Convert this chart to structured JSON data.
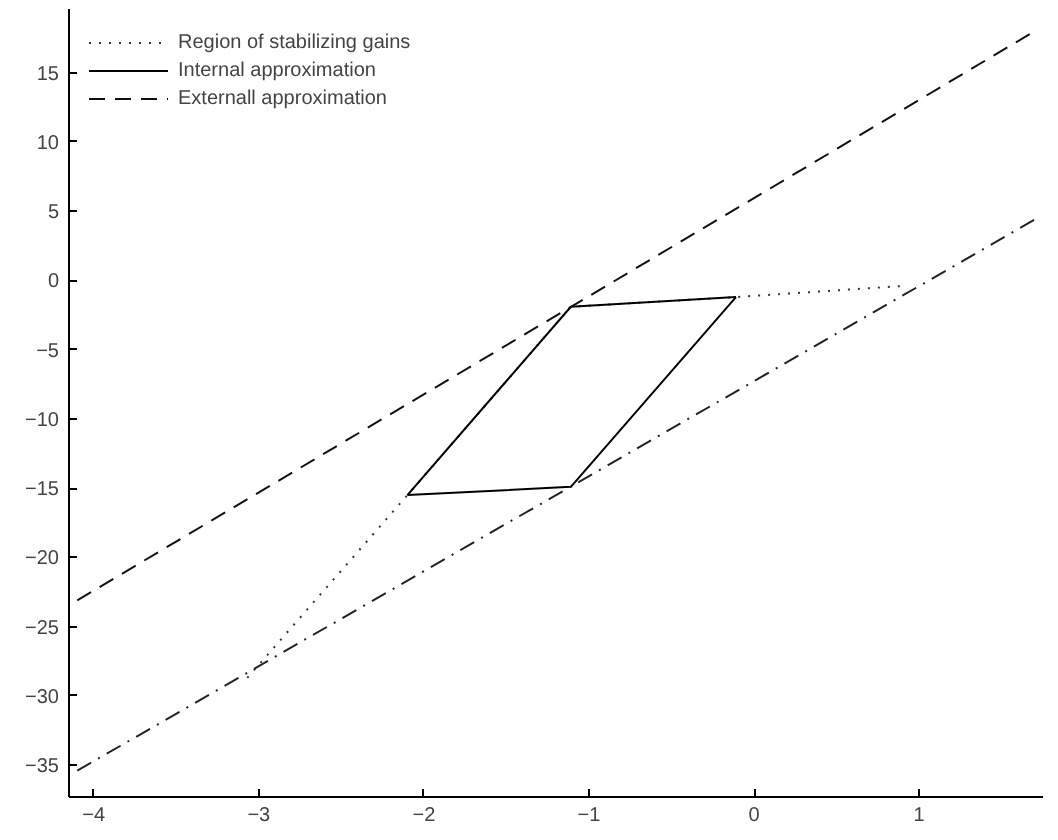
{
  "chart_data": {
    "type": "line",
    "xlim": [
      -4.15,
      1.75
    ],
    "ylim": [
      -37.3,
      19.6
    ],
    "xticks": [
      -4,
      -3,
      -2,
      -1,
      0,
      1
    ],
    "yticks": [
      -35,
      -30,
      -25,
      -20,
      -15,
      -10,
      -5,
      0,
      5,
      10,
      15
    ],
    "grid": false,
    "legend": "top left",
    "marker": "none",
    "series": [
      {
        "name": "Region of stabilizing gains",
        "color": "#333333",
        "line_style": "dotted",
        "x": [
          -3.07,
          -2.1,
          -1.11,
          -0.11,
          0.9
        ],
        "values": [
          -28.7,
          -15.5,
          -1.9,
          -1.2,
          -0.4
        ]
      },
      {
        "name": "Internal approximation",
        "color": "#000000",
        "line_style": "solid",
        "x": [
          -2.1,
          -1.11,
          -0.11
        ],
        "values": [
          -15.5,
          -1.9,
          -1.2
        ]
      },
      {
        "color": "#000000",
        "line_style": "solid",
        "x": [
          -2.1,
          -1.11,
          -0.11
        ],
        "values": [
          -15.5,
          -14.9,
          -1.2
        ]
      },
      {
        "name": "Externall approximation",
        "color": "#111111",
        "line_style": "dashed",
        "x": [
          -4.1,
          1.7
        ],
        "values": [
          -23.1,
          18.0
        ]
      },
      {
        "color": "#222222",
        "line_style": "dashdot",
        "x": [
          -4.1,
          1.7
        ],
        "values": [
          -35.4,
          4.4
        ]
      }
    ]
  }
}
